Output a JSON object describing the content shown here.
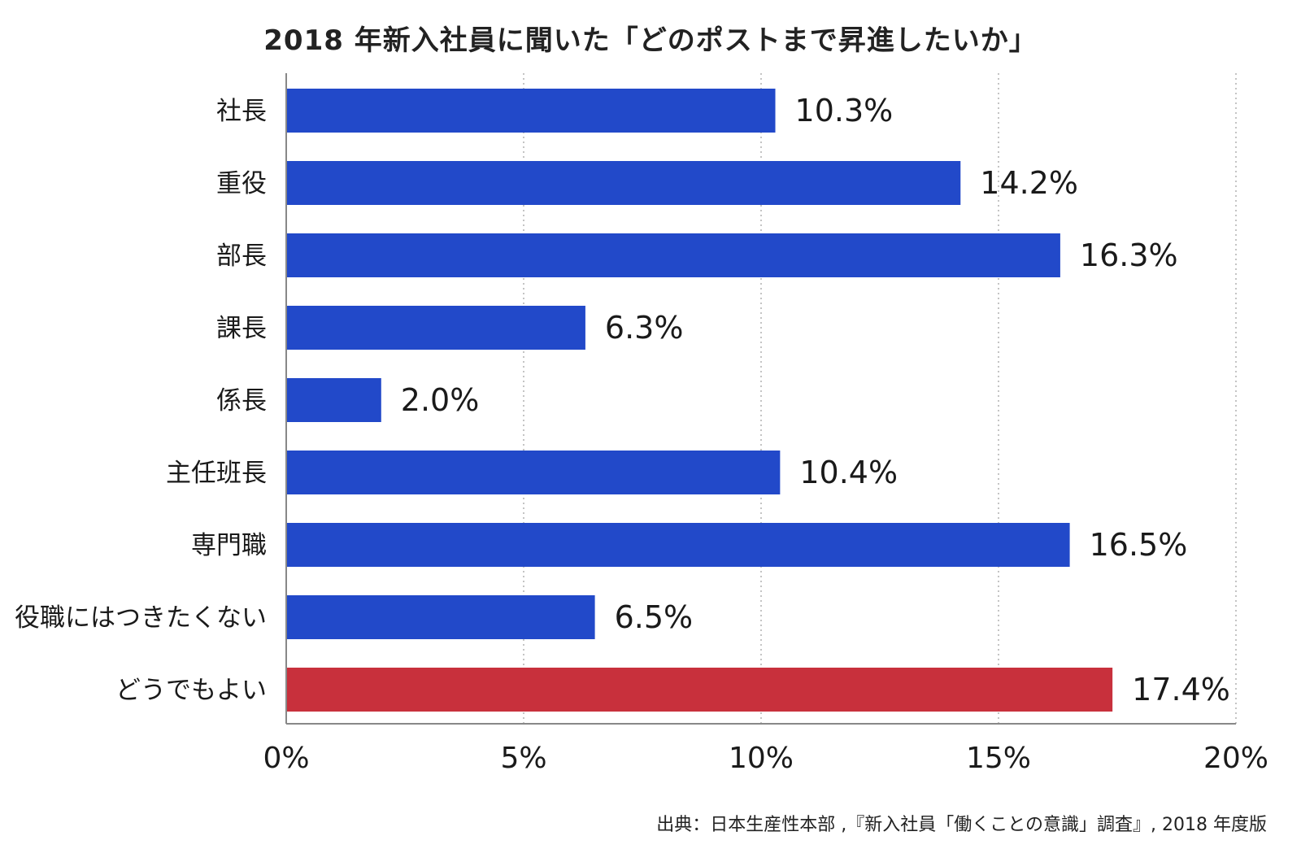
{
  "title": "2018 年新入社員に聞いた「どのポストまで昇進したいか」",
  "source": "出典：日本生産性本部 ,『新入社員「働くことの意識」調査』, 2018 年度版",
  "colors": {
    "bar_default": "#2249c9",
    "bar_highlight": "#c8303c",
    "grid": "#b0b0b0",
    "axis": "#888888"
  },
  "chart_data": {
    "type": "bar",
    "orientation": "horizontal",
    "categories": [
      "社長",
      "重役",
      "部長",
      "課長",
      "係長",
      "主任班長",
      "専門職",
      "役職にはつきたくない",
      "どうでもよい"
    ],
    "values": [
      10.3,
      14.2,
      16.3,
      6.3,
      2.0,
      10.4,
      16.5,
      6.5,
      17.4
    ],
    "value_labels": [
      "10.3%",
      "14.2%",
      "16.3%",
      "6.3%",
      "2.0%",
      "10.4%",
      "16.5%",
      "6.5%",
      "17.4%"
    ],
    "highlight_index": 8,
    "xlim": [
      0,
      20
    ],
    "xticks": [
      0,
      5,
      10,
      15,
      20
    ],
    "xtick_labels": [
      "0%",
      "5%",
      "10%",
      "15%",
      "20%"
    ],
    "grid": "vertical-dotted"
  }
}
